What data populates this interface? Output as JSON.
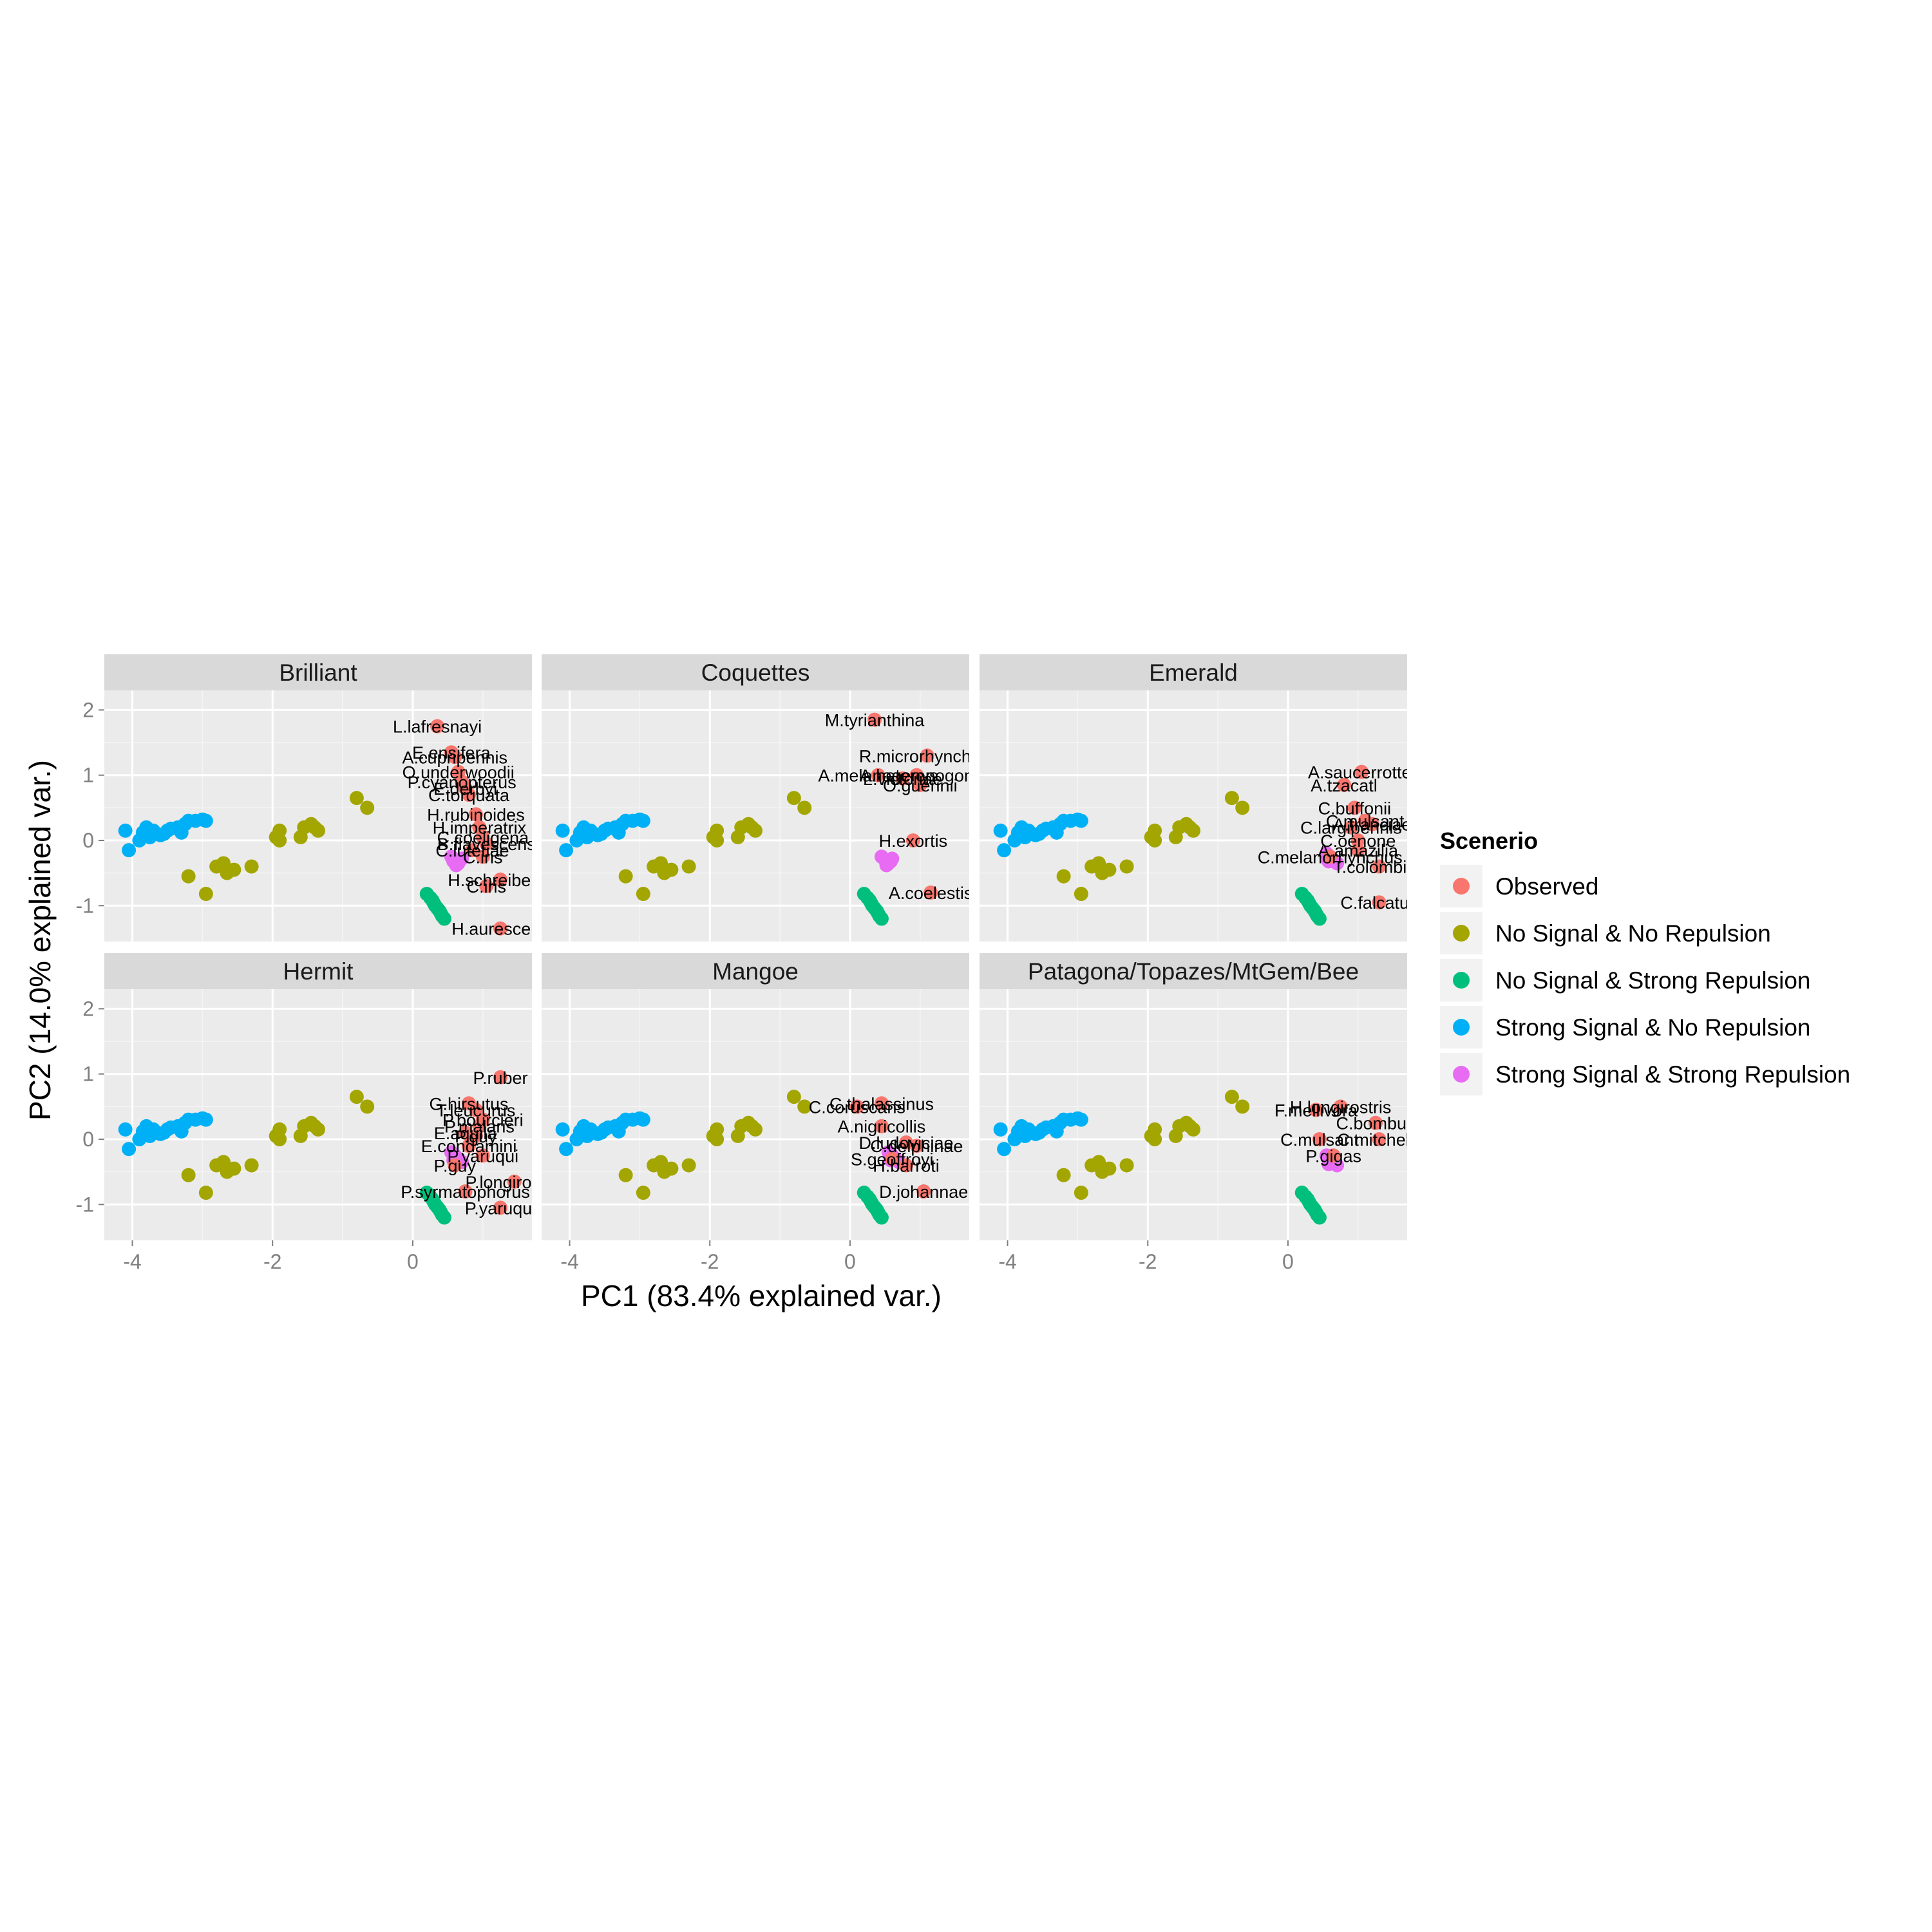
{
  "chart_data": {
    "type": "scatter",
    "x_label": "PC1 (83.4% explained var.)",
    "y_label": "PC2 (14.0% explained var.)",
    "xlim": [
      -4.4,
      1.7
    ],
    "ylim": [
      -1.55,
      2.3
    ],
    "x_ticks": [
      -4,
      -2,
      0
    ],
    "y_ticks": [
      -1,
      0,
      1,
      2
    ],
    "legend": {
      "title": "Scenerio",
      "position": "right",
      "items": [
        {
          "name": "Observed",
          "color": "#F8766D"
        },
        {
          "name": "No Signal & No Repulsion",
          "color": "#A3A500"
        },
        {
          "name": "No Signal & Strong Repulsion",
          "color": "#00BF7D"
        },
        {
          "name": "Strong Signal & No Repulsion",
          "color": "#00B0F6"
        },
        {
          "name": "Strong Signal & Strong Repulsion",
          "color": "#E76BF3"
        }
      ]
    },
    "simulated": {
      "strong_signal_no_repulsion": {
        "x": [
          -4.1,
          -4.05,
          -3.9,
          -3.85,
          -3.8,
          -3.75,
          -3.65,
          -3.6,
          -3.5,
          -3.45,
          -3.3,
          -3.25,
          -3.2,
          -3.1,
          -3.0,
          -2.95,
          -3.75,
          -3.7,
          -3.55,
          -3.35
        ],
        "y": [
          0.15,
          -0.15,
          0.0,
          0.12,
          0.2,
          0.05,
          0.1,
          0.08,
          0.15,
          0.18,
          0.12,
          0.25,
          0.3,
          0.3,
          0.32,
          0.3,
          0.05,
          0.15,
          0.1,
          0.2
        ]
      },
      "no_signal_no_repulsion": {
        "x": [
          -3.2,
          -2.95,
          -2.8,
          -2.7,
          -2.65,
          -2.55,
          -2.3,
          -1.95,
          -1.9,
          -1.9,
          -1.6,
          -1.55,
          -1.45,
          -1.4,
          -1.35,
          -0.8,
          -0.65
        ],
        "y": [
          -0.55,
          -0.82,
          -0.4,
          -0.35,
          -0.5,
          -0.45,
          -0.4,
          0.05,
          0.15,
          0.0,
          0.05,
          0.2,
          0.25,
          0.2,
          0.15,
          0.65,
          0.5
        ]
      },
      "no_signal_strong_repulsion": {
        "x": [
          0.2,
          0.25,
          0.28,
          0.3,
          0.32,
          0.35,
          0.38,
          0.4,
          0.42,
          0.45
        ],
        "y": [
          -0.82,
          -0.88,
          -0.92,
          -0.96,
          -1.0,
          -1.04,
          -1.08,
          -1.12,
          -1.16,
          -1.2
        ]
      }
    },
    "facets": [
      {
        "title": "Brilliant",
        "observed": [
          {
            "label": "L.lafresnayi",
            "x": 0.35,
            "y": 1.75
          },
          {
            "label": "E.ensifera",
            "x": 0.55,
            "y": 1.35
          },
          {
            "label": "A.cupripennis",
            "x": 0.6,
            "y": 1.28
          },
          {
            "label": "O.underwoodii",
            "x": 0.65,
            "y": 1.05
          },
          {
            "label": "P.cyanopterus",
            "x": 0.7,
            "y": 0.9
          },
          {
            "label": "E.derbyi",
            "x": 0.75,
            "y": 0.8
          },
          {
            "label": "C.torquata",
            "x": 0.8,
            "y": 0.7
          },
          {
            "label": "H.rubinoides",
            "x": 0.9,
            "y": 0.4
          },
          {
            "label": "H.imperatrix",
            "x": 0.95,
            "y": 0.2
          },
          {
            "label": "C.coeligena",
            "x": 1.0,
            "y": 0.05
          },
          {
            "label": "B.flavescens",
            "x": 1.05,
            "y": -0.05
          },
          {
            "label": "C.lutetiae",
            "x": 0.85,
            "y": -0.15
          },
          {
            "label": "C.iris",
            "x": 1.0,
            "y": -0.25
          },
          {
            "label": "H.schreibersii",
            "x": 1.25,
            "y": -0.6
          },
          {
            "label": "C.iris",
            "x": 1.05,
            "y": -0.7
          },
          {
            "label": "H.aurescens",
            "x": 1.25,
            "y": -1.35
          }
        ],
        "strong_repulsion_cluster": {
          "x": [
            0.55,
            0.6,
            0.65,
            0.7,
            0.62,
            0.58
          ],
          "y": [
            -0.25,
            -0.3,
            -0.35,
            -0.28,
            -0.38,
            -0.32
          ]
        }
      },
      {
        "title": "Coquettes",
        "observed": [
          {
            "label": "M.tyrianthina",
            "x": 0.35,
            "y": 1.85
          },
          {
            "label": "R.microrhynchum",
            "x": 1.1,
            "y": 1.3
          },
          {
            "label": "A.melanogenys",
            "x": 0.4,
            "y": 1.0
          },
          {
            "label": "L.victoriae",
            "x": 0.75,
            "y": 0.95
          },
          {
            "label": "O.guerinii",
            "x": 1.0,
            "y": 0.85
          },
          {
            "label": "A.heteropogon",
            "x": 0.95,
            "y": 1.0
          },
          {
            "label": "H.exortis",
            "x": 0.9,
            "y": 0.0
          },
          {
            "label": "A.coelestis",
            "x": 1.15,
            "y": -0.8
          }
        ],
        "strong_repulsion_cluster": {
          "x": [
            0.45,
            0.5,
            0.55,
            0.6,
            0.52,
            0.58
          ],
          "y": [
            -0.25,
            -0.3,
            -0.35,
            -0.28,
            -0.38,
            -0.32
          ]
        }
      },
      {
        "title": "Emerald",
        "observed": [
          {
            "label": "A.saucerrottei",
            "x": 1.05,
            "y": 1.05
          },
          {
            "label": "A.tzacatl",
            "x": 0.8,
            "y": 0.85
          },
          {
            "label": "C.buffonii",
            "x": 0.95,
            "y": 0.5
          },
          {
            "label": "C.mulsant",
            "x": 1.1,
            "y": 0.3
          },
          {
            "label": "A.franciae",
            "x": 1.2,
            "y": 0.25
          },
          {
            "label": "C.largipennis",
            "x": 0.9,
            "y": 0.2
          },
          {
            "label": "C.oenone",
            "x": 1.0,
            "y": 0.0
          },
          {
            "label": "A.amazilia",
            "x": 1.0,
            "y": -0.15
          },
          {
            "label": "C.melanorhynchus",
            "x": 0.6,
            "y": -0.25
          },
          {
            "label": "T.colombica",
            "x": 1.3,
            "y": -0.4
          },
          {
            "label": "C.falcatus",
            "x": 1.3,
            "y": -0.95
          }
        ],
        "strong_repulsion_cluster": {
          "x": [
            0.55,
            0.6,
            0.65,
            0.7,
            0.62,
            0.58
          ],
          "y": [
            -0.2,
            -0.25,
            -0.3,
            -0.35,
            -0.28,
            -0.32
          ]
        }
      },
      {
        "title": "Hermit",
        "observed": [
          {
            "label": "P.ruber",
            "x": 1.25,
            "y": 0.95
          },
          {
            "label": "G.hirsutus",
            "x": 0.8,
            "y": 0.55
          },
          {
            "label": "T.leucurus",
            "x": 0.9,
            "y": 0.45
          },
          {
            "label": "P.bourcieri",
            "x": 1.0,
            "y": 0.3
          },
          {
            "label": "P.malaris",
            "x": 0.95,
            "y": 0.2
          },
          {
            "label": "E.aquila",
            "x": 0.75,
            "y": 0.1
          },
          {
            "label": "P.guy",
            "x": 0.9,
            "y": 0.05
          },
          {
            "label": "E.condamini",
            "x": 0.8,
            "y": -0.1
          },
          {
            "label": "P.yaruqui",
            "x": 1.0,
            "y": -0.25
          },
          {
            "label": "P.guy",
            "x": 0.6,
            "y": -0.4
          },
          {
            "label": "P.longirostris",
            "x": 1.45,
            "y": -0.65
          },
          {
            "label": "P.syrmatophorus",
            "x": 0.75,
            "y": -0.8
          },
          {
            "label": "P.yaruqui",
            "x": 1.25,
            "y": -1.05
          }
        ],
        "strong_repulsion_cluster": {
          "x": [
            0.55,
            0.6,
            0.65,
            0.7,
            0.62,
            0.58
          ],
          "y": [
            -0.2,
            -0.25,
            -0.3,
            -0.35,
            -0.28,
            -0.32
          ]
        }
      },
      {
        "title": "Mangoe",
        "observed": [
          {
            "label": "C.thalassinus",
            "x": 0.45,
            "y": 0.55
          },
          {
            "label": "C.coruscans",
            "x": 0.1,
            "y": 0.5
          },
          {
            "label": "A.nigricollis",
            "x": 0.45,
            "y": 0.2
          },
          {
            "label": "D.ludoviciae",
            "x": 0.8,
            "y": -0.05
          },
          {
            "label": "C.delphinae",
            "x": 0.95,
            "y": -0.1
          },
          {
            "label": "S.geoffroyi",
            "x": 0.6,
            "y": -0.3
          },
          {
            "label": "H.barroti",
            "x": 0.8,
            "y": -0.4
          },
          {
            "label": "D.johannae",
            "x": 1.05,
            "y": -0.8
          }
        ],
        "strong_repulsion_cluster": {
          "x": [
            0.55,
            0.6,
            0.65,
            0.7,
            0.62,
            0.58
          ],
          "y": [
            -0.2,
            -0.25,
            -0.3,
            -0.35,
            -0.28,
            -0.32
          ]
        }
      },
      {
        "title": "Patagona/Topazes/MtGem/Bee",
        "observed": [
          {
            "label": "H.longirostris",
            "x": 0.75,
            "y": 0.5
          },
          {
            "label": "F.mellivora",
            "x": 0.4,
            "y": 0.45
          },
          {
            "label": "C.bombus",
            "x": 1.25,
            "y": 0.25
          },
          {
            "label": "C.mulsant",
            "x": 0.45,
            "y": 0.0
          },
          {
            "label": "C.mitchellii",
            "x": 1.3,
            "y": 0.0
          },
          {
            "label": "P.gigas",
            "x": 0.65,
            "y": -0.25
          }
        ],
        "strong_repulsion_cluster": {
          "x": [
            0.55,
            0.6,
            0.65,
            0.7,
            0.62,
            0.58
          ],
          "y": [
            -0.25,
            -0.3,
            -0.35,
            -0.4,
            -0.33,
            -0.38
          ]
        }
      }
    ]
  }
}
